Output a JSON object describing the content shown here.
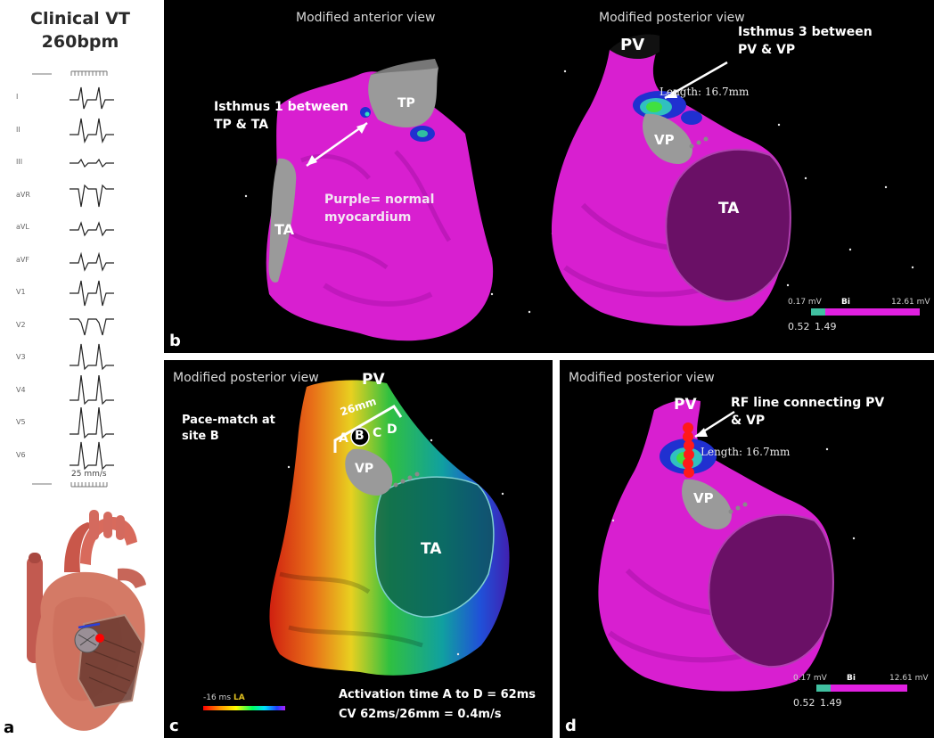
{
  "ecg": {
    "title_line1": "Clinical VT",
    "title_line2": "260bpm",
    "leads": [
      "I",
      "II",
      "III",
      "aVR",
      "aVL",
      "aVF",
      "V1",
      "V2",
      "V3",
      "V4",
      "V5",
      "V6"
    ],
    "speed": "25 mm/s",
    "panel_letter": "a"
  },
  "panel_b": {
    "letter": "b",
    "anterior_title": "Modified anterior view",
    "posterior_title": "Modified posterior view",
    "isthmus1_line1": "Isthmus 1 between",
    "isthmus1_line2": "TP & TA",
    "tp": "TP",
    "ta_left": "TA",
    "purple_line1": "Purple= normal",
    "purple_line2": "myocardium",
    "pv": "PV",
    "isthmus3_line1": "Isthmus 3 between",
    "isthmus3_line2": "PV & VP",
    "length": "Length: 16.7mm",
    "vp": "VP",
    "ta_right": "TA",
    "scale_min": "0.17 mV",
    "scale_mode": "Bi",
    "scale_max": "12.61 mV",
    "scale_low": "0.52",
    "scale_high": "1.49"
  },
  "panel_c": {
    "letter": "c",
    "title": "Modified posterior view",
    "pv": "PV",
    "pace_line1": "Pace-match at",
    "pace_line2": "site B",
    "dist": "26mm",
    "site_a": "A",
    "site_b": "B",
    "site_c": "C",
    "site_d": "D",
    "vp": "VP",
    "ta": "TA",
    "scale_min": "-16 ms",
    "scale_mode": "LA",
    "activation": "Activation time A to D = 62ms",
    "cv": "CV 62ms/26mm = 0.4m/s"
  },
  "panel_d": {
    "letter": "d",
    "title": "Modified posterior view",
    "pv": "PV",
    "rf_line1": "RF line connecting PV",
    "rf_line2": "& VP",
    "length": "Length: 16.7mm",
    "vp": "VP",
    "scale_min": "0.17 mV",
    "scale_mode": "Bi",
    "scale_max": "12.61 mV",
    "scale_low": "0.52",
    "scale_high": "1.49"
  },
  "colors": {
    "myocardium": "#d81fd0",
    "panel_bg": "#000000",
    "annotation": "#ffffff",
    "ablation": "#ff1a1a"
  }
}
